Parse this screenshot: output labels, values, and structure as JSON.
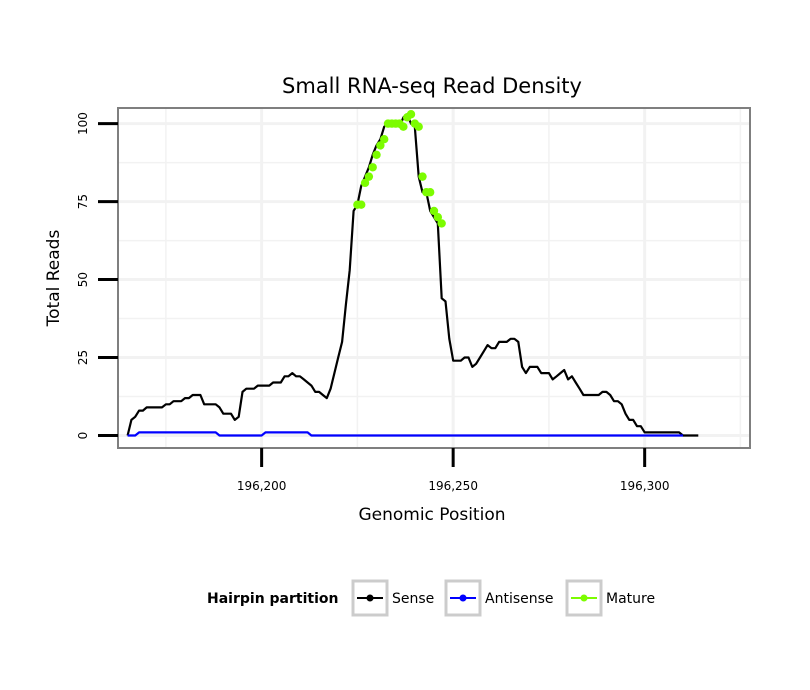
{
  "chart_data": {
    "type": "line",
    "title": "Small RNA-seq Read Density",
    "xlabel": "Genomic Position",
    "ylabel": "Total Reads",
    "xlim": [
      196162.5,
      196327.5
    ],
    "ylim": [
      -4,
      105
    ],
    "x_ticks": [
      196200,
      196250,
      196300
    ],
    "x_tick_labels": [
      "196,200",
      "196,250",
      "196,300"
    ],
    "y_ticks": [
      0,
      25,
      50,
      75,
      100
    ],
    "y_tick_labels": [
      "0",
      "25",
      "50",
      "75",
      "100"
    ],
    "grid": true,
    "legend": {
      "title": "Hairpin partition",
      "position": "bottom",
      "entries": [
        {
          "label": "Sense",
          "color": "#000000"
        },
        {
          "label": "Antisense",
          "color": "#0000ff"
        },
        {
          "label": "Mature",
          "color": "#7cfc00"
        }
      ]
    },
    "series": [
      {
        "name": "Sense",
        "color": "#000000",
        "points": [
          [
            196165,
            0
          ],
          [
            196166,
            5
          ],
          [
            196167,
            6
          ],
          [
            196168,
            8
          ],
          [
            196169,
            8
          ],
          [
            196170,
            9
          ],
          [
            196174,
            9
          ],
          [
            196175,
            10
          ],
          [
            196176,
            10
          ],
          [
            196177,
            11
          ],
          [
            196179,
            11
          ],
          [
            196180,
            12
          ],
          [
            196181,
            12
          ],
          [
            196182,
            13
          ],
          [
            196184,
            13
          ],
          [
            196185,
            10
          ],
          [
            196188,
            10
          ],
          [
            196189,
            9
          ],
          [
            196190,
            7
          ],
          [
            196191,
            7
          ],
          [
            196192,
            7
          ],
          [
            196193,
            5
          ],
          [
            196194,
            6
          ],
          [
            196195,
            14
          ],
          [
            196196,
            15
          ],
          [
            196198,
            15
          ],
          [
            196199,
            16
          ],
          [
            196202,
            16
          ],
          [
            196203,
            17
          ],
          [
            196205,
            17
          ],
          [
            196206,
            19
          ],
          [
            196207,
            19
          ],
          [
            196208,
            20
          ],
          [
            196209,
            19
          ],
          [
            196210,
            19
          ],
          [
            196211,
            18
          ],
          [
            196212,
            17
          ],
          [
            196213,
            16
          ],
          [
            196214,
            14
          ],
          [
            196215,
            14
          ],
          [
            196216,
            13
          ],
          [
            196217,
            12
          ],
          [
            196218,
            15
          ],
          [
            196219,
            20
          ],
          [
            196220,
            25
          ],
          [
            196221,
            30
          ],
          [
            196222,
            42
          ],
          [
            196223,
            53
          ],
          [
            196224,
            72
          ],
          [
            196225,
            74
          ],
          [
            196226,
            80
          ],
          [
            196227,
            83
          ],
          [
            196228,
            86
          ],
          [
            196229,
            90
          ],
          [
            196230,
            93
          ],
          [
            196231,
            95
          ],
          [
            196232,
            99
          ],
          [
            196233,
            100
          ],
          [
            196234,
            100
          ],
          [
            196235,
            100
          ],
          [
            196236,
            99
          ],
          [
            196237,
            102
          ],
          [
            196238,
            103
          ],
          [
            196239,
            100
          ],
          [
            196240,
            99
          ],
          [
            196241,
            83
          ],
          [
            196242,
            78
          ],
          [
            196243,
            78
          ],
          [
            196244,
            72
          ],
          [
            196245,
            70
          ],
          [
            196246,
            68
          ],
          [
            196247,
            44
          ],
          [
            196248,
            43
          ],
          [
            196249,
            31
          ],
          [
            196250,
            24
          ],
          [
            196251,
            24
          ],
          [
            196252,
            24
          ],
          [
            196253,
            25
          ],
          [
            196254,
            25
          ],
          [
            196255,
            22
          ],
          [
            196256,
            23
          ],
          [
            196257,
            25
          ],
          [
            196258,
            27
          ],
          [
            196259,
            29
          ],
          [
            196260,
            28
          ],
          [
            196261,
            28
          ],
          [
            196262,
            30
          ],
          [
            196263,
            30
          ],
          [
            196264,
            30
          ],
          [
            196265,
            31
          ],
          [
            196266,
            31
          ],
          [
            196267,
            30
          ],
          [
            196268,
            22
          ],
          [
            196269,
            20
          ],
          [
            196270,
            22
          ],
          [
            196271,
            22
          ],
          [
            196272,
            22
          ],
          [
            196273,
            20
          ],
          [
            196274,
            20
          ],
          [
            196275,
            20
          ],
          [
            196276,
            18
          ],
          [
            196277,
            19
          ],
          [
            196278,
            20
          ],
          [
            196279,
            21
          ],
          [
            196280,
            18
          ],
          [
            196281,
            19
          ],
          [
            196282,
            17
          ],
          [
            196283,
            15
          ],
          [
            196284,
            13
          ],
          [
            196285,
            13
          ],
          [
            196288,
            13
          ],
          [
            196289,
            14
          ],
          [
            196290,
            14
          ],
          [
            196291,
            13
          ],
          [
            196292,
            11
          ],
          [
            196293,
            11
          ],
          [
            196294,
            10
          ],
          [
            196295,
            7
          ],
          [
            196296,
            5
          ],
          [
            196297,
            5
          ],
          [
            196298,
            3
          ],
          [
            196299,
            3
          ],
          [
            196300,
            1
          ],
          [
            196309,
            1
          ],
          [
            196310,
            0
          ],
          [
            196314,
            0
          ]
        ]
      },
      {
        "name": "Antisense",
        "color": "#0000ff",
        "points": [
          [
            196165,
            0
          ],
          [
            196167,
            0
          ],
          [
            196168,
            1
          ],
          [
            196188,
            1
          ],
          [
            196189,
            0
          ],
          [
            196200,
            0
          ],
          [
            196201,
            1
          ],
          [
            196212,
            1
          ],
          [
            196213,
            0
          ],
          [
            196310,
            0
          ]
        ]
      },
      {
        "name": "Mature",
        "color": "#7cfc00",
        "points": [
          [
            196225,
            74
          ],
          [
            196226,
            74
          ],
          [
            196227,
            81
          ],
          [
            196228,
            83
          ],
          [
            196229,
            86
          ],
          [
            196230,
            90
          ],
          [
            196231,
            93
          ],
          [
            196232,
            95
          ],
          [
            196233,
            100
          ],
          [
            196234,
            100
          ],
          [
            196235,
            100
          ],
          [
            196236,
            100
          ],
          [
            196237,
            99
          ],
          [
            196238,
            102
          ],
          [
            196239,
            103
          ],
          [
            196240,
            100
          ],
          [
            196241,
            99
          ],
          [
            196242,
            83
          ],
          [
            196243,
            78
          ],
          [
            196244,
            78
          ],
          [
            196245,
            72
          ],
          [
            196246,
            70
          ],
          [
            196247,
            68
          ]
        ]
      }
    ]
  }
}
